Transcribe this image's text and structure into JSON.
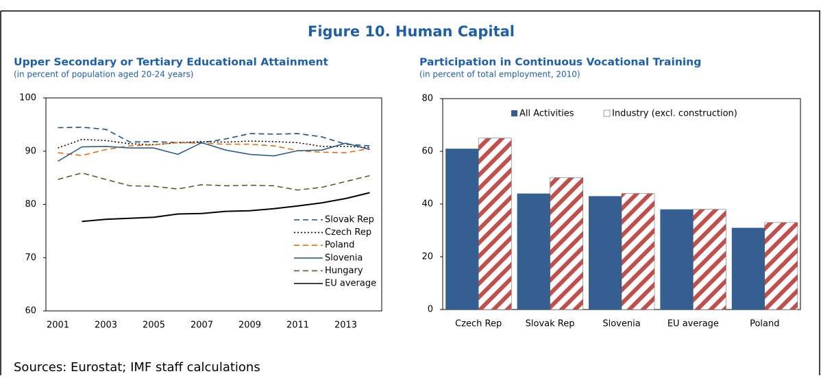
{
  "title": "Figure 10. Human Capital",
  "source": "Sources: Eurostat; IMF staff calculations",
  "chart_data": [
    {
      "type": "line",
      "title": "Upper Secondary or Tertiary Educational Attainment",
      "subtitle": "(in percent of population aged 20-24 years)",
      "x": [
        2001,
        2002,
        2003,
        2004,
        2005,
        2006,
        2007,
        2008,
        2009,
        2010,
        2011,
        2012,
        2013,
        2014
      ],
      "xlim": [
        2000.5,
        2014.5
      ],
      "xticks": [
        2001,
        2003,
        2005,
        2007,
        2009,
        2011,
        2013
      ],
      "ylim": [
        60,
        100
      ],
      "yticks": [
        60,
        70,
        80,
        90,
        100
      ],
      "legend": "lower right",
      "series": [
        {
          "name": "Slovak Rep",
          "color": "#1f4e79",
          "dash": "dashed",
          "values": [
            94.4,
            94.5,
            94.1,
            91.7,
            91.8,
            91.6,
            91.6,
            92.3,
            93.3,
            93.2,
            93.3,
            92.7,
            91.3,
            91.0
          ]
        },
        {
          "name": "Czech Rep",
          "color": "#000000",
          "dash": "dotted",
          "values": [
            90.6,
            92.2,
            92.0,
            91.4,
            91.2,
            91.6,
            91.8,
            91.7,
            91.9,
            91.8,
            91.6,
            90.9,
            90.9,
            90.7
          ]
        },
        {
          "name": "Poland",
          "color": "#e46c0a",
          "dash": "dashed",
          "values": [
            89.7,
            89.2,
            90.3,
            91.0,
            91.2,
            91.6,
            91.5,
            91.3,
            91.3,
            91.0,
            90.1,
            89.8,
            89.7,
            90.5
          ]
        },
        {
          "name": "Slovenia",
          "color": "#2e5c8a",
          "dash": "solid",
          "values": [
            88.1,
            90.8,
            90.9,
            90.6,
            90.6,
            89.4,
            91.6,
            90.2,
            89.4,
            89.1,
            90.1,
            90.2,
            91.5,
            90.3
          ]
        },
        {
          "name": "Hungary",
          "color": "#4f6228",
          "dash": "dashed",
          "values": [
            84.7,
            85.9,
            84.7,
            83.5,
            83.4,
            82.9,
            83.7,
            83.5,
            83.6,
            83.5,
            82.7,
            83.2,
            84.3,
            85.4
          ]
        },
        {
          "name": "EU average",
          "color": "#000000",
          "dash": "solid",
          "values": [
            null,
            76.8,
            77.2,
            77.4,
            77.6,
            78.2,
            78.3,
            78.7,
            78.8,
            79.2,
            79.7,
            80.3,
            81.1,
            82.2
          ]
        }
      ]
    },
    {
      "type": "bar",
      "title": "Participation in Continuous Vocational Training",
      "subtitle": "(in percent of total employment, 2010)",
      "categories": [
        "Czech Rep",
        "Slovak Rep",
        "Slovenia",
        "EU average",
        "Poland"
      ],
      "ylim": [
        0,
        80
      ],
      "yticks": [
        0,
        20,
        40,
        60,
        80
      ],
      "legend": "upper center",
      "series": [
        {
          "name": "All Activities",
          "color": "#355f91",
          "pattern": "solid",
          "values": [
            61,
            44,
            43,
            38,
            31
          ]
        },
        {
          "name": "Industry (excl. construction)",
          "color": "#c0504d",
          "pattern": "hatch",
          "values": [
            65,
            50,
            44,
            38,
            33
          ]
        }
      ]
    }
  ]
}
